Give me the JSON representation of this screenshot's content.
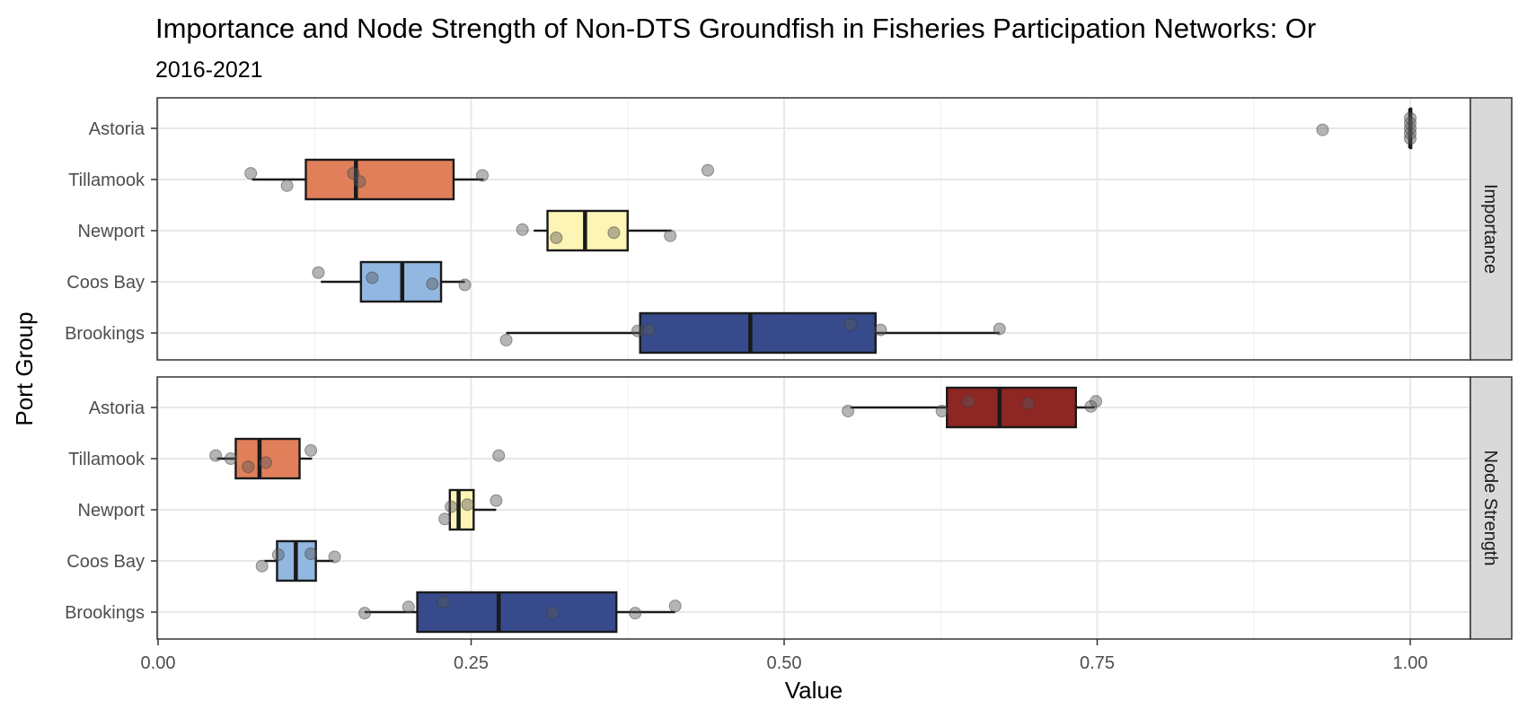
{
  "chart_data": {
    "type": "boxplot",
    "title": "Importance and Node Strength of Non-DTS Groundfish in Fisheries Participation Networks: Or",
    "subtitle": "2016-2021",
    "xlabel": "Value",
    "ylabel": "Port Group",
    "xlim": [
      0,
      1.05
    ],
    "x_ticks": [
      "0.00",
      "0.25",
      "0.50",
      "0.75",
      "1.00"
    ],
    "x_tick_values": [
      0,
      0.25,
      0.5,
      0.75,
      1.0
    ],
    "categories": [
      "Astoria",
      "Tillamook",
      "Newport",
      "Coos Bay",
      "Brookings"
    ],
    "colors": {
      "Astoria": "#8e2623",
      "Tillamook": "#e07f5a",
      "Newport": "#fdf5b5",
      "Coos Bay": "#92b7e0",
      "Brookings": "#364a8c"
    },
    "grid": true,
    "panels": [
      {
        "label": "Importance",
        "boxes": [
          {
            "group": "Astoria",
            "whisker_low": 1.0,
            "q1": 1.0,
            "median": 1.0,
            "q3": 1.0,
            "whisker_high": 1.0,
            "points": [
              [
                0.93,
                -0.03
              ],
              [
                1.0,
                -0.2
              ],
              [
                1.0,
                -0.1
              ],
              [
                1.0,
                0.0
              ],
              [
                1.0,
                0.1
              ],
              [
                1.0,
                0.2
              ]
            ]
          },
          {
            "group": "Tillamook",
            "whisker_low": 0.075,
            "q1": 0.118,
            "median": 0.158,
            "q3": 0.236,
            "whisker_high": 0.26,
            "points": [
              [
                0.074,
                0.12
              ],
              [
                0.103,
                -0.12
              ],
              [
                0.156,
                0.12
              ],
              [
                0.161,
                -0.04
              ],
              [
                0.259,
                0.08
              ],
              [
                0.439,
                0.18
              ]
            ]
          },
          {
            "group": "Newport",
            "whisker_low": 0.3,
            "q1": 0.311,
            "median": 0.341,
            "q3": 0.375,
            "whisker_high": 0.41,
            "points": [
              [
                0.291,
                0.02
              ],
              [
                0.318,
                -0.14
              ],
              [
                0.364,
                -0.04
              ],
              [
                0.409,
                -0.1
              ]
            ]
          },
          {
            "group": "Coos Bay",
            "whisker_low": 0.13,
            "q1": 0.162,
            "median": 0.195,
            "q3": 0.226,
            "whisker_high": 0.245,
            "points": [
              [
                0.128,
                0.18
              ],
              [
                0.171,
                0.08
              ],
              [
                0.219,
                -0.04
              ],
              [
                0.245,
                -0.06
              ]
            ]
          },
          {
            "group": "Brookings",
            "whisker_low": 0.278,
            "q1": 0.385,
            "median": 0.473,
            "q3": 0.573,
            "whisker_high": 0.672,
            "points": [
              [
                0.278,
                -0.14
              ],
              [
                0.383,
                0.04
              ],
              [
                0.392,
                0.06
              ],
              [
                0.553,
                0.16
              ],
              [
                0.577,
                0.06
              ],
              [
                0.672,
                0.08
              ]
            ]
          }
        ]
      },
      {
        "label": "Node Strength",
        "boxes": [
          {
            "group": "Astoria",
            "whisker_low": 0.553,
            "q1": 0.63,
            "median": 0.672,
            "q3": 0.733,
            "whisker_high": 0.748,
            "points": [
              [
                0.551,
                -0.07
              ],
              [
                0.626,
                -0.07
              ],
              [
                0.647,
                0.12
              ],
              [
                0.695,
                0.08
              ],
              [
                0.745,
                0.02
              ],
              [
                0.749,
                0.12
              ]
            ]
          },
          {
            "group": "Tillamook",
            "whisker_low": 0.047,
            "q1": 0.062,
            "median": 0.081,
            "q3": 0.113,
            "whisker_high": 0.123,
            "points": [
              [
                0.046,
                0.06
              ],
              [
                0.058,
                0.0
              ],
              [
                0.072,
                -0.16
              ],
              [
                0.086,
                -0.08
              ],
              [
                0.122,
                0.16
              ],
              [
                0.272,
                0.06
              ]
            ]
          },
          {
            "group": "Newport",
            "whisker_low": 0.232,
            "q1": 0.233,
            "median": 0.24,
            "q3": 0.252,
            "whisker_high": 0.27,
            "points": [
              [
                0.229,
                -0.18
              ],
              [
                0.234,
                0.06
              ],
              [
                0.247,
                0.1
              ],
              [
                0.27,
                0.18
              ]
            ]
          },
          {
            "group": "Coos Bay",
            "whisker_low": 0.085,
            "q1": 0.095,
            "median": 0.11,
            "q3": 0.126,
            "whisker_high": 0.14,
            "points": [
              [
                0.083,
                -0.1
              ],
              [
                0.096,
                0.12
              ],
              [
                0.122,
                0.14
              ],
              [
                0.141,
                0.08
              ]
            ]
          },
          {
            "group": "Brookings",
            "whisker_low": 0.165,
            "q1": 0.207,
            "median": 0.272,
            "q3": 0.366,
            "whisker_high": 0.413,
            "points": [
              [
                0.165,
                -0.02
              ],
              [
                0.2,
                0.1
              ],
              [
                0.228,
                0.2
              ],
              [
                0.315,
                -0.02
              ],
              [
                0.381,
                -0.02
              ],
              [
                0.413,
                0.12
              ]
            ]
          }
        ]
      }
    ]
  }
}
